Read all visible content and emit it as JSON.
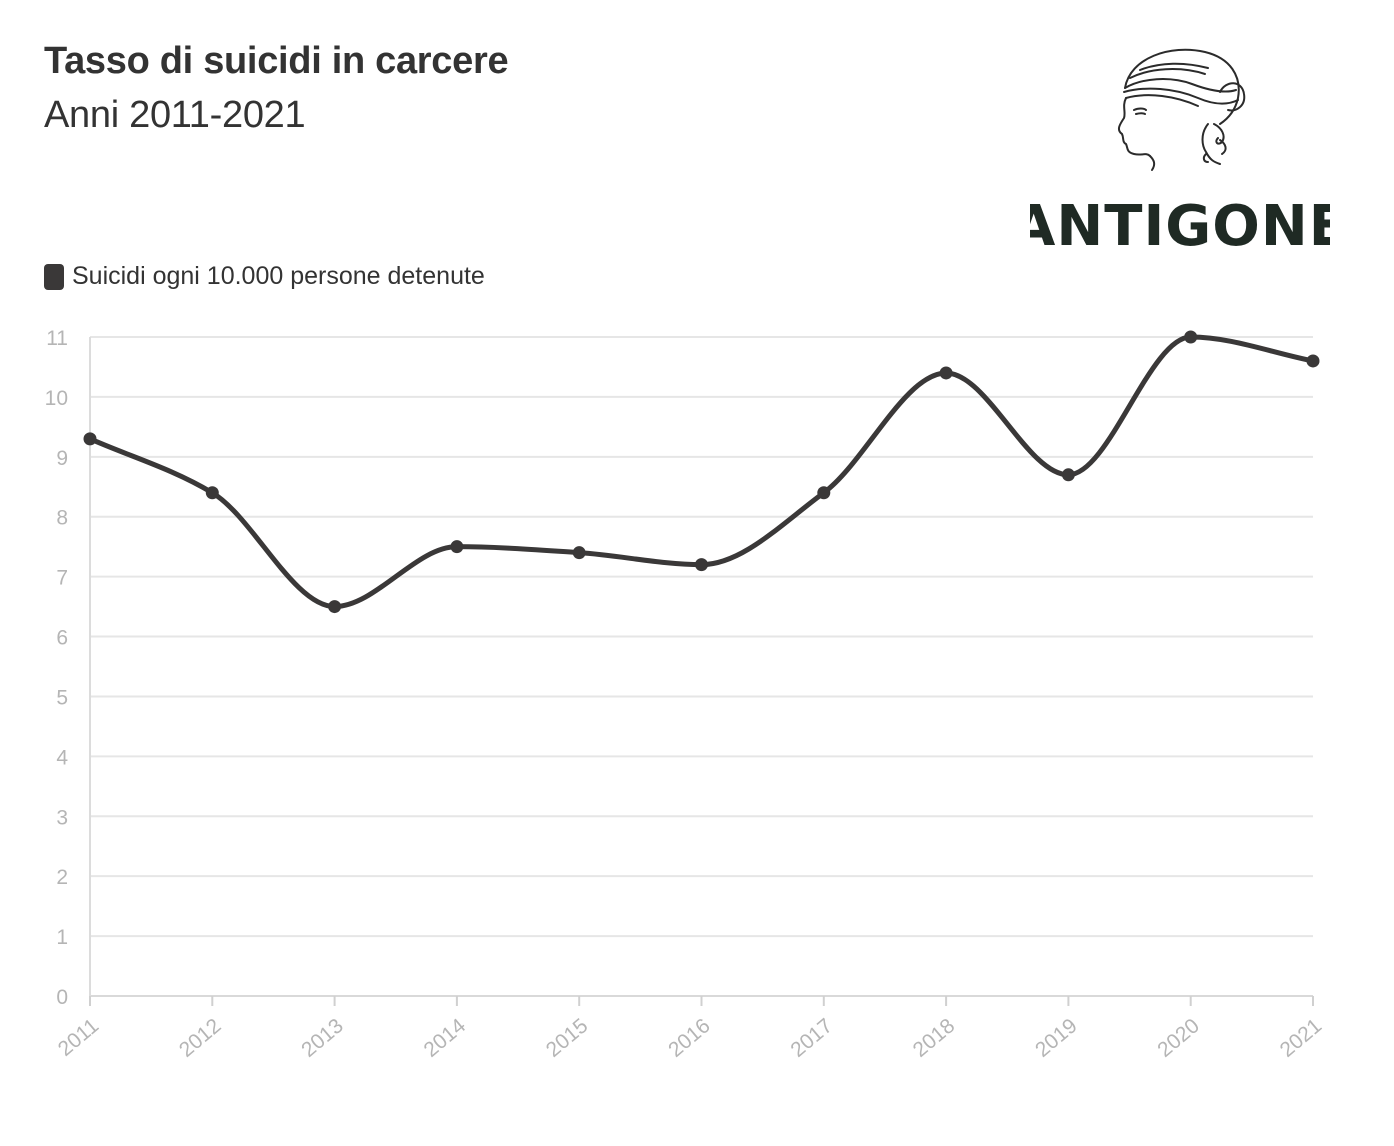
{
  "header": {
    "title": "Tasso di suicidi in carcere",
    "subtitle": "Anni 2011-2021"
  },
  "logo": {
    "text": "ANTIGONE",
    "icon": "antigone-head-icon"
  },
  "colors": {
    "series": "#3a3838",
    "grid": "#e6e6e6",
    "tick_text": "#b5b5b5",
    "text": "#333333"
  },
  "chart_data": {
    "type": "line",
    "x": [
      "2011",
      "2012",
      "2013",
      "2014",
      "2015",
      "2016",
      "2017",
      "2018",
      "2019",
      "2020",
      "2021"
    ],
    "series": [
      {
        "name": "Suicidi ogni 10.000 persone detenute",
        "values": [
          9.3,
          8.4,
          6.5,
          7.5,
          7.4,
          7.2,
          8.4,
          10.4,
          8.7,
          11.0,
          10.6
        ]
      }
    ],
    "title": "Tasso di suicidi in carcere",
    "subtitle": "Anni 2011-2021",
    "xlabel": "",
    "ylabel": "",
    "ylim": [
      0,
      11
    ],
    "yticks": [
      "0",
      "1",
      "2",
      "3",
      "4",
      "5",
      "6",
      "7",
      "8",
      "9",
      "10",
      "11"
    ],
    "grid": true,
    "smooth": true,
    "legend": "top-left"
  }
}
